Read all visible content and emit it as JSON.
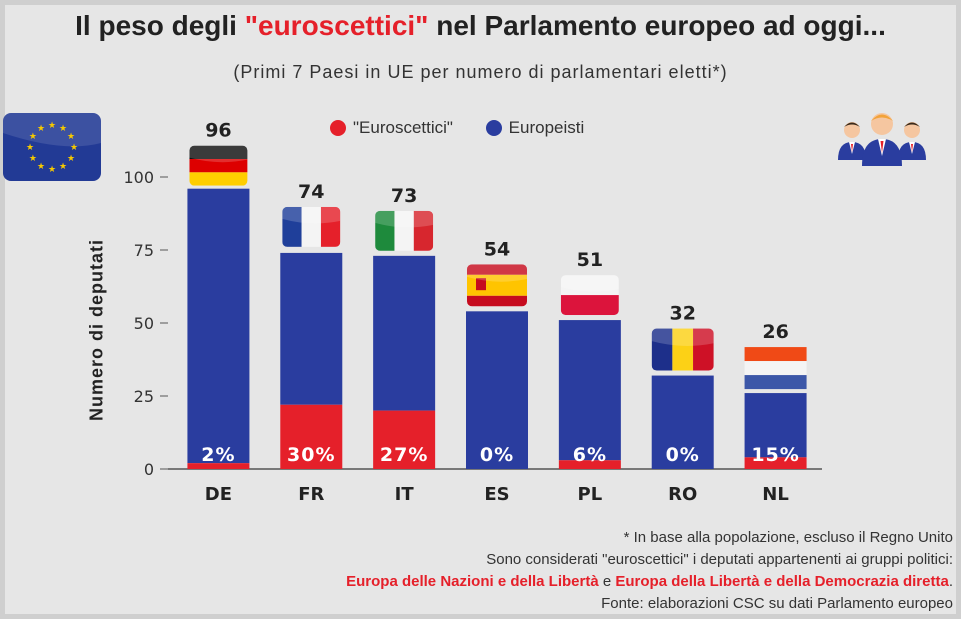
{
  "title": {
    "pre": "Il peso degli ",
    "highlight": "\"euroscettici\"",
    "post": " nel Parlamento europeo ad oggi..."
  },
  "subtitle": "(Primi 7 Paesi in UE per numero di parlamentari eletti*)",
  "legend": {
    "euroscettici": "\"Euroscettici\"",
    "europeisti": "Europeisti"
  },
  "colors": {
    "euroscettici": "#e5202a",
    "europeisti": "#2a3d9f",
    "background": "#e6e6e6"
  },
  "icons": {
    "eu_flag": "eu-flag-icon",
    "people": "politicians-group-icon"
  },
  "notes": {
    "line1": "* In base alla popolazione, escluso il Regno Unito",
    "line2": "Sono considerati \"euroscettici\" i deputati appartenenti ai gruppi politici:",
    "group1": "Europa delle Nazioni e della Libertà",
    "conj": " e ",
    "group2": "Europa della Libertà e della Democrazia diretta",
    "period": ".",
    "source": "Fonte: elaborazioni CSC su dati Parlamento europeo"
  },
  "chart_data": {
    "type": "bar",
    "stacked": true,
    "ylabel": "Numero di deputati",
    "ylim": [
      0,
      100
    ],
    "yticks": [
      0,
      25,
      50,
      75,
      100
    ],
    "grid": false,
    "legend_position": "top",
    "categories": [
      "DE",
      "FR",
      "IT",
      "ES",
      "PL",
      "RO",
      "NL"
    ],
    "totals": [
      96,
      74,
      73,
      54,
      51,
      32,
      26
    ],
    "euroscettici_pct_labels": [
      "2%",
      "30%",
      "27%",
      "0%",
      "6%",
      "0%",
      "15%"
    ],
    "series": [
      {
        "name": "\"Euroscettici\"",
        "values": [
          2,
          22,
          20,
          0,
          3,
          0,
          4
        ]
      },
      {
        "name": "Europeisti",
        "values": [
          94,
          52,
          53,
          54,
          48,
          32,
          22
        ]
      }
    ],
    "flags": [
      "germany-flag-icon",
      "france-flag-icon",
      "italy-flag-icon",
      "spain-flag-icon",
      "poland-flag-icon",
      "romania-flag-icon",
      "netherlands-flag-icon"
    ]
  }
}
